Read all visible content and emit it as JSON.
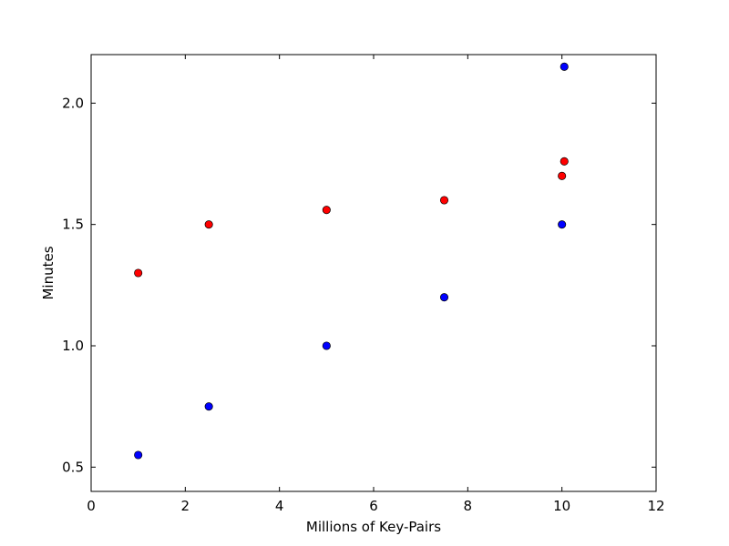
{
  "chart_data": {
    "type": "scatter",
    "title": "",
    "xlabel": "Millions of Key-Pairs",
    "ylabel": "Minutes",
    "xlim": [
      0,
      12
    ],
    "ylim": [
      0.4,
      2.2
    ],
    "x_ticks": [
      0,
      2,
      4,
      6,
      8,
      10,
      12
    ],
    "x_tick_labels": [
      "0",
      "2",
      "4",
      "6",
      "8",
      "10",
      "12"
    ],
    "y_ticks": [
      0.5,
      1.0,
      1.5,
      2.0
    ],
    "y_tick_labels": [
      "0.5",
      "1.0",
      "1.5",
      "2.0"
    ],
    "grid": false,
    "legend": "none",
    "series": [
      {
        "color": "#ff0000",
        "points": [
          {
            "x": 1.0,
            "y": 1.3
          },
          {
            "x": 2.5,
            "y": 1.5
          },
          {
            "x": 5.0,
            "y": 1.56
          },
          {
            "x": 7.5,
            "y": 1.6
          },
          {
            "x": 10.0,
            "y": 1.7
          },
          {
            "x": 10.05,
            "y": 1.76
          }
        ]
      },
      {
        "color": "#0000ff",
        "points": [
          {
            "x": 1.0,
            "y": 0.55
          },
          {
            "x": 2.5,
            "y": 0.75
          },
          {
            "x": 5.0,
            "y": 1.0
          },
          {
            "x": 7.5,
            "y": 1.2
          },
          {
            "x": 10.0,
            "y": 1.5
          },
          {
            "x": 10.05,
            "y": 2.15
          }
        ]
      }
    ]
  }
}
